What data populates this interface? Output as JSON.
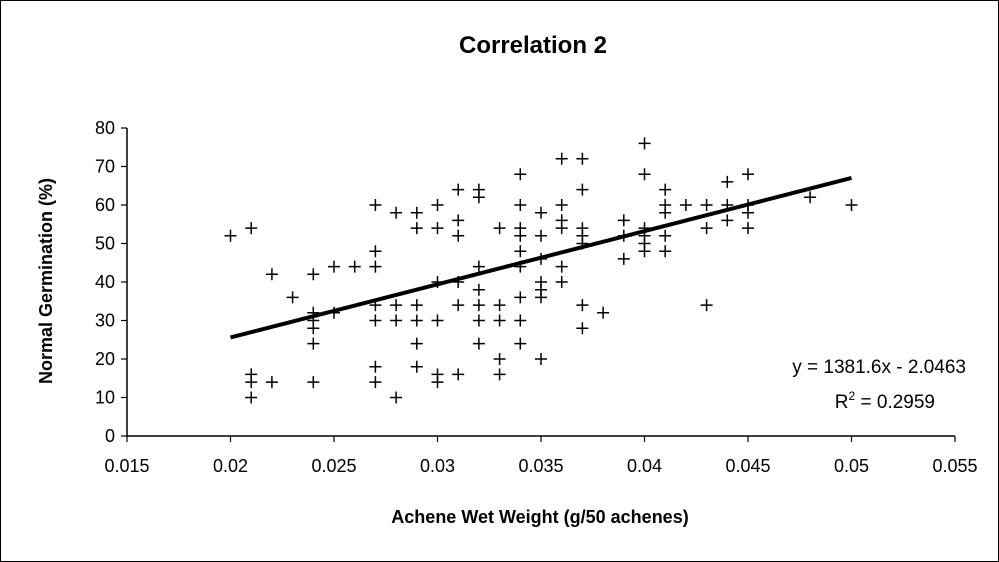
{
  "chart_data": {
    "type": "scatter",
    "title": "Correlation 2",
    "xlabel": "Achene Wet Weight (g/50 achenes)",
    "ylabel": "Normal Germination (%)",
    "xlim": [
      0.015,
      0.055
    ],
    "ylim": [
      0,
      80
    ],
    "x_ticks": [
      "0.015",
      "0.02",
      "0.025",
      "0.03",
      "0.035",
      "0.04",
      "0.045",
      "0.05",
      "0.055"
    ],
    "y_ticks": [
      "0",
      "10",
      "20",
      "30",
      "40",
      "50",
      "60",
      "70",
      "80"
    ],
    "grid": false,
    "marker": "+",
    "trendline": {
      "slope": 1381.6,
      "intercept": -2.0463,
      "x_range": [
        0.02,
        0.05
      ],
      "equation_text": "y = 1381.6x - 2.0463",
      "r2_prefix": "R",
      "r2_sup": "2",
      "r2_suffix": " = 0.2959"
    },
    "points": [
      [
        0.02,
        52
      ],
      [
        0.021,
        54
      ],
      [
        0.021,
        16
      ],
      [
        0.021,
        14
      ],
      [
        0.021,
        10
      ],
      [
        0.022,
        14
      ],
      [
        0.022,
        42
      ],
      [
        0.023,
        36
      ],
      [
        0.024,
        42
      ],
      [
        0.024,
        32
      ],
      [
        0.024,
        30
      ],
      [
        0.024,
        28
      ],
      [
        0.024,
        24
      ],
      [
        0.024,
        14
      ],
      [
        0.025,
        44
      ],
      [
        0.025,
        32
      ],
      [
        0.026,
        44
      ],
      [
        0.027,
        60
      ],
      [
        0.027,
        48
      ],
      [
        0.027,
        44
      ],
      [
        0.027,
        34
      ],
      [
        0.027,
        30
      ],
      [
        0.027,
        18
      ],
      [
        0.027,
        14
      ],
      [
        0.028,
        58
      ],
      [
        0.028,
        34
      ],
      [
        0.028,
        30
      ],
      [
        0.028,
        10
      ],
      [
        0.029,
        58
      ],
      [
        0.029,
        54
      ],
      [
        0.029,
        34
      ],
      [
        0.029,
        30
      ],
      [
        0.029,
        24
      ],
      [
        0.029,
        18
      ],
      [
        0.03,
        60
      ],
      [
        0.03,
        54
      ],
      [
        0.03,
        40
      ],
      [
        0.03,
        30
      ],
      [
        0.03,
        16
      ],
      [
        0.03,
        14
      ],
      [
        0.031,
        64
      ],
      [
        0.031,
        56
      ],
      [
        0.031,
        52
      ],
      [
        0.031,
        40
      ],
      [
        0.031,
        34
      ],
      [
        0.031,
        16
      ],
      [
        0.032,
        64
      ],
      [
        0.032,
        62
      ],
      [
        0.032,
        44
      ],
      [
        0.032,
        38
      ],
      [
        0.032,
        34
      ],
      [
        0.032,
        30
      ],
      [
        0.032,
        24
      ],
      [
        0.033,
        54
      ],
      [
        0.033,
        34
      ],
      [
        0.033,
        30
      ],
      [
        0.033,
        20
      ],
      [
        0.033,
        16
      ],
      [
        0.034,
        68
      ],
      [
        0.034,
        60
      ],
      [
        0.034,
        54
      ],
      [
        0.034,
        52
      ],
      [
        0.034,
        48
      ],
      [
        0.034,
        44
      ],
      [
        0.034,
        36
      ],
      [
        0.034,
        30
      ],
      [
        0.034,
        24
      ],
      [
        0.035,
        58
      ],
      [
        0.035,
        52
      ],
      [
        0.035,
        46
      ],
      [
        0.035,
        40
      ],
      [
        0.035,
        38
      ],
      [
        0.035,
        36
      ],
      [
        0.035,
        20
      ],
      [
        0.036,
        72
      ],
      [
        0.036,
        60
      ],
      [
        0.036,
        56
      ],
      [
        0.036,
        54
      ],
      [
        0.036,
        44
      ],
      [
        0.036,
        40
      ],
      [
        0.037,
        72
      ],
      [
        0.037,
        64
      ],
      [
        0.037,
        54
      ],
      [
        0.037,
        52
      ],
      [
        0.037,
        50
      ],
      [
        0.037,
        34
      ],
      [
        0.037,
        28
      ],
      [
        0.038,
        32
      ],
      [
        0.039,
        56
      ],
      [
        0.039,
        52
      ],
      [
        0.039,
        46
      ],
      [
        0.04,
        76
      ],
      [
        0.04,
        68
      ],
      [
        0.04,
        54
      ],
      [
        0.04,
        52
      ],
      [
        0.04,
        50
      ],
      [
        0.04,
        48
      ],
      [
        0.041,
        64
      ],
      [
        0.041,
        60
      ],
      [
        0.041,
        58
      ],
      [
        0.041,
        52
      ],
      [
        0.041,
        48
      ],
      [
        0.042,
        60
      ],
      [
        0.043,
        60
      ],
      [
        0.043,
        54
      ],
      [
        0.043,
        34
      ],
      [
        0.044,
        66
      ],
      [
        0.044,
        60
      ],
      [
        0.044,
        56
      ],
      [
        0.045,
        68
      ],
      [
        0.045,
        60
      ],
      [
        0.045,
        58
      ],
      [
        0.045,
        54
      ],
      [
        0.048,
        62
      ],
      [
        0.05,
        60
      ]
    ]
  }
}
